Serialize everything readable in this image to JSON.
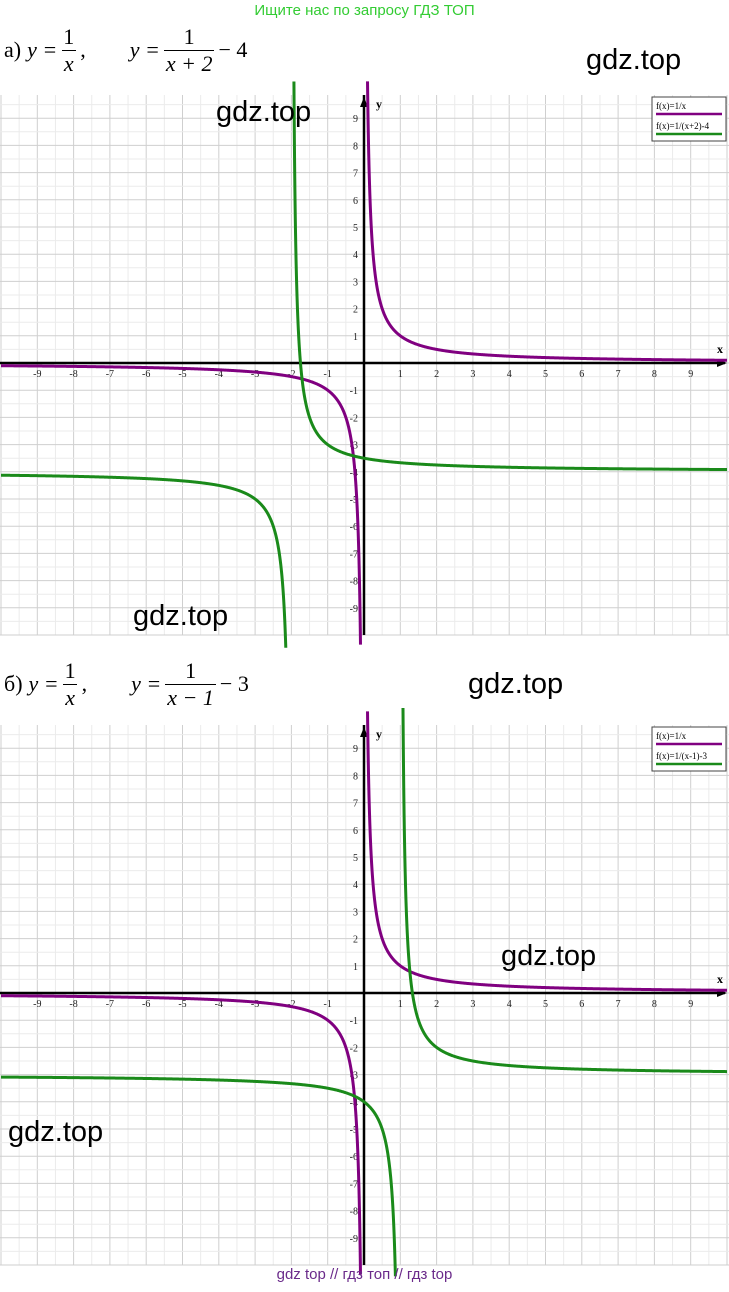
{
  "banner": "Ищите нас по запросу ГДЗ ТОП",
  "footer": "gdz top  //  гдз топ  //  гдз top",
  "watermarks": [
    "gdz.top",
    "gdz.top",
    "gdz.top",
    "gdz.top",
    "gdz.top",
    "gdz.top"
  ],
  "formulas": [
    {
      "label": "а)",
      "f1_lhs": "y =",
      "f1_num": "1",
      "f1_den": "x",
      "f1_sep": ",",
      "f2_lhs": "y =",
      "f2_num": "1",
      "f2_den": "x + 2",
      "f2_tail": "− 4"
    },
    {
      "label": "б)",
      "f1_lhs": "y =",
      "f1_num": "1",
      "f1_den": "x",
      "f1_sep": ",",
      "f2_lhs": "y =",
      "f2_num": "1",
      "f2_den": "x − 1",
      "f2_tail": "− 3"
    }
  ],
  "chart_data": [
    {
      "type": "line",
      "xlabel": "x",
      "ylabel": "y",
      "xlim": [
        -10,
        10
      ],
      "ylim": [
        -10,
        10
      ],
      "xticks": [
        -9,
        -8,
        -7,
        -6,
        -5,
        -4,
        -3,
        -2,
        -1,
        1,
        2,
        3,
        4,
        5,
        6,
        7,
        8,
        9
      ],
      "yticks": [
        9,
        8,
        7,
        6,
        5,
        4,
        3,
        2,
        1,
        -1,
        -2,
        -3,
        -4,
        -5,
        -6,
        -7,
        -8,
        -9
      ],
      "grid": true,
      "legend": "top-right",
      "series": [
        {
          "name": "f(x)=1/x",
          "color": "#800080",
          "shift": 0,
          "offset": 0
        },
        {
          "name": "f(x)=1/(x+2)-4",
          "color": "#1a8a1a",
          "shift": -2,
          "offset": -4
        }
      ]
    },
    {
      "type": "line",
      "xlabel": "x",
      "ylabel": "y",
      "xlim": [
        -10,
        10
      ],
      "ylim": [
        -10,
        10
      ],
      "xticks": [
        -9,
        -8,
        -7,
        -6,
        -5,
        -4,
        -3,
        -2,
        -1,
        1,
        2,
        3,
        4,
        5,
        6,
        7,
        8,
        9
      ],
      "yticks": [
        9,
        8,
        7,
        6,
        5,
        4,
        3,
        2,
        1,
        -1,
        -2,
        -3,
        -4,
        -5,
        -6,
        -7,
        -8,
        -9
      ],
      "grid": true,
      "legend": "top-right",
      "series": [
        {
          "name": "f(x)=1/x",
          "color": "#800080",
          "shift": 0,
          "offset": 0
        },
        {
          "name": "f(x)=1/(x-1)-3",
          "color": "#1a8a1a",
          "shift": 1,
          "offset": -3
        }
      ]
    }
  ]
}
